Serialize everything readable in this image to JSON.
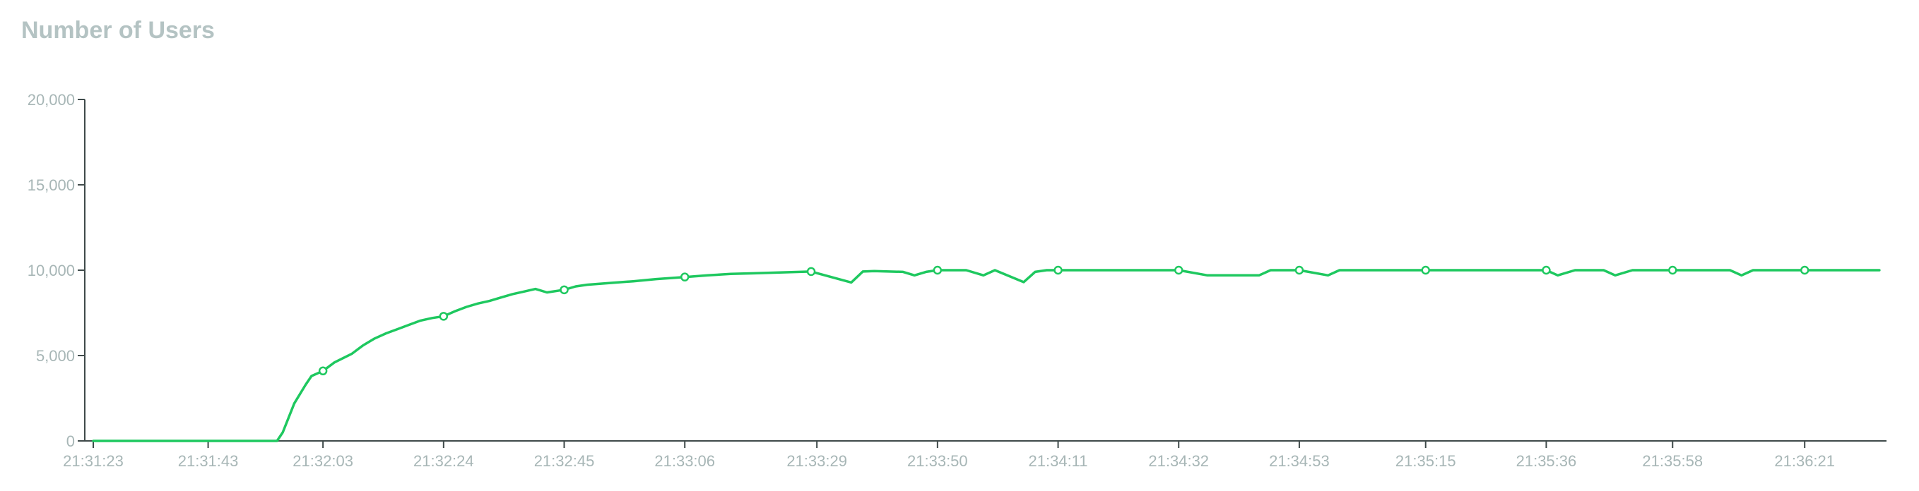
{
  "chart_data": {
    "type": "line",
    "title": "Number of Users",
    "xlabel": "",
    "ylabel": "",
    "ylim": [
      0,
      20000
    ],
    "yticks": [
      0,
      5000,
      10000,
      15000,
      20000
    ],
    "ytick_labels": [
      "0",
      "5,000",
      "10,000",
      "15,000",
      "20,000"
    ],
    "xlim": [
      "21:31:23",
      "21:36:35"
    ],
    "xtick_labels": [
      "21:31:23",
      "21:31:43",
      "21:32:03",
      "21:32:24",
      "21:32:45",
      "21:33:06",
      "21:33:29",
      "21:33:50",
      "21:34:11",
      "21:34:32",
      "21:34:53",
      "21:35:15",
      "21:35:36",
      "21:35:58",
      "21:36:21"
    ],
    "grid": false,
    "legend": "none",
    "color": "#1ec85f",
    "series": [
      {
        "x": [
          "21:31:23",
          "21:31:27",
          "21:31:31",
          "21:31:35",
          "21:31:39",
          "21:31:43",
          "21:31:47",
          "21:31:51",
          "21:31:55",
          "21:31:56",
          "21:31:58",
          "21:32:00",
          "21:32:01",
          "21:32:03",
          "21:32:05",
          "21:32:08",
          "21:32:10",
          "21:32:12",
          "21:32:14",
          "21:32:16",
          "21:32:18",
          "21:32:20",
          "21:32:22",
          "21:32:24",
          "21:32:26",
          "21:32:28",
          "21:32:30",
          "21:32:32",
          "21:32:34",
          "21:32:36",
          "21:32:38",
          "21:32:40",
          "21:32:42",
          "21:32:45",
          "21:32:47",
          "21:32:49",
          "21:32:53",
          "21:32:57",
          "21:33:01",
          "21:33:06",
          "21:33:10",
          "21:33:14",
          "21:33:18",
          "21:33:22",
          "21:33:26",
          "21:33:28",
          "21:33:35",
          "21:33:37",
          "21:33:39",
          "21:33:44",
          "21:33:46",
          "21:33:48",
          "21:33:50",
          "21:33:55",
          "21:33:58",
          "21:34:00",
          "21:34:05",
          "21:34:07",
          "21:34:09",
          "21:34:11",
          "21:34:32",
          "21:34:37",
          "21:34:46",
          "21:34:48",
          "21:34:53",
          "21:34:58",
          "21:35:00",
          "21:35:06",
          "21:35:15",
          "21:35:36",
          "21:35:38",
          "21:35:41",
          "21:35:46",
          "21:35:48",
          "21:35:51",
          "21:35:58",
          "21:36:08",
          "21:36:10",
          "21:36:12",
          "21:36:21",
          "21:36:34"
        ],
        "y": [
          0,
          0,
          0,
          0,
          0,
          0,
          0,
          0,
          0,
          500,
          2200,
          3300,
          3800,
          4100,
          4600,
          5100,
          5600,
          6000,
          6300,
          6550,
          6800,
          7050,
          7200,
          7300,
          7600,
          7850,
          8050,
          8200,
          8400,
          8600,
          8750,
          8900,
          8700,
          8850,
          9050,
          9150,
          9250,
          9350,
          9480,
          9600,
          9700,
          9780,
          9820,
          9860,
          9900,
          9920,
          9280,
          9920,
          9950,
          9900,
          9700,
          9900,
          10000,
          10000,
          9700,
          10000,
          9300,
          9900,
          10000,
          10000,
          10000,
          9700,
          9700,
          10000,
          10000,
          9700,
          10000,
          10000,
          10000,
          10000,
          9700,
          10000,
          10000,
          9700,
          10000,
          10000,
          10000,
          9700,
          10000,
          10000,
          10000
        ],
        "markers": [
          [
            "21:32:03",
            4100
          ],
          [
            "21:32:24",
            7300
          ],
          [
            "21:32:45",
            8850
          ],
          [
            "21:33:06",
            9600
          ],
          [
            "21:33:28",
            9920
          ],
          [
            "21:33:50",
            10000
          ],
          [
            "21:34:11",
            10000
          ],
          [
            "21:34:32",
            10000
          ],
          [
            "21:34:53",
            10000
          ],
          [
            "21:35:15",
            10000
          ],
          [
            "21:35:36",
            10000
          ],
          [
            "21:35:58",
            10000
          ],
          [
            "21:36:21",
            10000
          ]
        ]
      }
    ]
  }
}
